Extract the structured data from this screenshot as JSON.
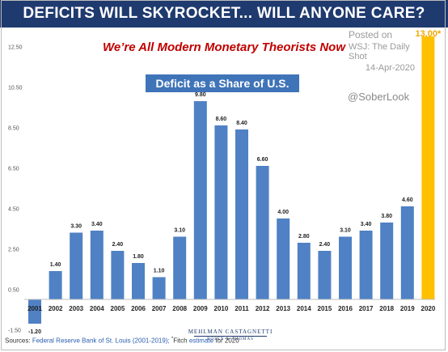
{
  "header": {
    "banner": "DEFICITS WILL SKYROCKET... WILL ANYONE CARE?",
    "subtitle": "We’re All Modern Monetary Theorists Now"
  },
  "watermark": {
    "posted_on": "Posted on",
    "source": "WSJ: The Daily Shot",
    "date": "14-Apr-2020",
    "handle": "@SoberLook"
  },
  "footer": {
    "sources_label": "Sources:",
    "sources_fed": "Federal Reserve Bank of St. Louis (2001-2019);",
    "sources_fitch_mark": "*",
    "sources_fitch": "Fitch",
    "sources_estimate": "estimate",
    "sources_for": "for 2020",
    "logo_line1": "MEHLMAN CASTAGNETTI",
    "logo_line2": "ROSEN & THOMAS"
  },
  "chart_data": {
    "type": "bar",
    "title": "Deficit as a Share of U.S. GDP",
    "categories": [
      "2001",
      "2002",
      "2003",
      "2004",
      "2005",
      "2006",
      "2007",
      "2008",
      "2009",
      "2010",
      "2011",
      "2012",
      "2013",
      "2014",
      "2015",
      "2016",
      "2017",
      "2018",
      "2019",
      "2020"
    ],
    "values": [
      -1.2,
      1.4,
      3.3,
      3.4,
      2.4,
      1.8,
      1.1,
      3.1,
      9.8,
      8.6,
      8.4,
      6.6,
      4.0,
      2.8,
      2.4,
      3.1,
      3.4,
      3.8,
      4.6,
      13.0
    ],
    "value_labels": [
      "-1.20",
      "1.40",
      "3.30",
      "3.40",
      "2.40",
      "1.80",
      "1.10",
      "3.10",
      "9.80",
      "8.60",
      "8.40",
      "6.60",
      "4.00",
      "2.80",
      "2.40",
      "3.10",
      "3.40",
      "3.80",
      "4.60",
      "13.00*"
    ],
    "y_ticks": [
      -1.5,
      0.5,
      2.5,
      4.5,
      6.5,
      8.5,
      10.5,
      12.5
    ],
    "y_tick_labels": [
      "-1.50",
      "0.50",
      "2.50",
      "4.50",
      "6.50",
      "8.50",
      "10.50",
      "12.50"
    ],
    "ylim": [
      -1.5,
      13.0
    ],
    "grid": false,
    "colors": {
      "bar": "#4f81c4",
      "highlight": "#ffc000",
      "highlight_label": "#f0a800"
    },
    "highlight_index": 19
  }
}
